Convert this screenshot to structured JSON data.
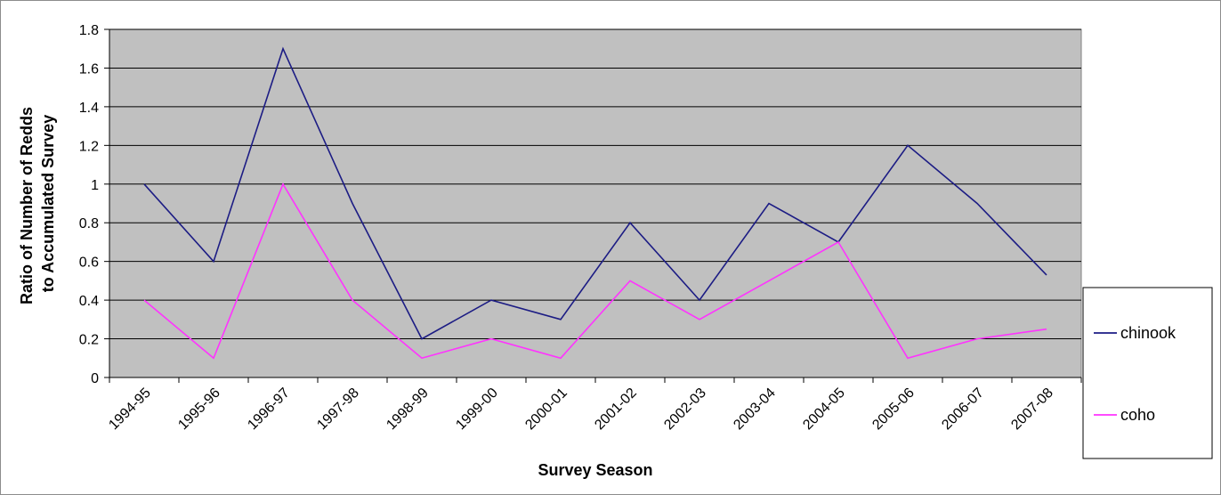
{
  "chart_data": {
    "type": "line",
    "title": "",
    "xlabel": "Survey Season",
    "ylabel": "Ratio of Number of Redds to Accumulated Survey",
    "ylabel_lines": [
      "Ratio of Number of Redds",
      "to Accumulated Survey"
    ],
    "ylim": [
      0,
      1.8
    ],
    "yticks": [
      0,
      0.2,
      0.4,
      0.6,
      0.8,
      1,
      1.2,
      1.4,
      1.6,
      1.8
    ],
    "ytick_labels": [
      "0",
      "0.2",
      "0.4",
      "0.6",
      "0.8",
      "1",
      "1.2",
      "1.4",
      "1.6",
      "1.8"
    ],
    "grid": true,
    "legend_position": "right",
    "categories": [
      "1994-95",
      "1995-96",
      "1996-97",
      "1997-98",
      "1998-99",
      "1999-00",
      "2000-01",
      "2001-02",
      "2002-03",
      "2003-04",
      "2004-05",
      "2005-06",
      "2006-07",
      "2007-08"
    ],
    "series": [
      {
        "name": "chinook",
        "color": "#1c1c84",
        "values": [
          1.0,
          0.6,
          1.7,
          0.9,
          0.2,
          0.4,
          0.3,
          0.8,
          0.4,
          0.9,
          0.7,
          1.2,
          0.9,
          0.53
        ]
      },
      {
        "name": "coho",
        "color": "#ff33ff",
        "values": [
          0.4,
          0.1,
          1.0,
          0.4,
          0.1,
          0.2,
          0.1,
          0.5,
          0.3,
          0.5,
          0.7,
          0.1,
          0.2,
          0.25
        ]
      }
    ],
    "plot_background": "#c0c0c0"
  }
}
